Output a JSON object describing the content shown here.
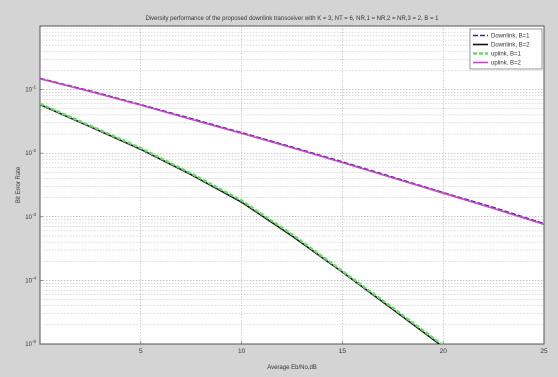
{
  "chart_data": {
    "type": "line",
    "title": "Diversity performance of the proposed downlink transceiver with K = 3, NT = 6, NR,1 = NR,2 = NR,3 = 2, B = 1",
    "xlabel": "Average Eb/No,dB",
    "ylabel": "Bit Error Rate",
    "xlim": [
      0,
      25
    ],
    "ylim_log10": [
      -5,
      0
    ],
    "y_log_scale": true,
    "grid": true,
    "legend_position": "top-right",
    "x_ticks": [
      5,
      10,
      15,
      20,
      25
    ],
    "y_ticks": [
      {
        "exp": -1,
        "label": "10",
        "sup": "-1"
      },
      {
        "exp": -2,
        "label": "10",
        "sup": "-2"
      },
      {
        "exp": -3,
        "label": "10",
        "sup": "-3"
      },
      {
        "exp": -4,
        "label": "10",
        "sup": "-4"
      },
      {
        "exp": -5,
        "label": "10",
        "sup": "-5"
      }
    ],
    "series": [
      {
        "name": "Downlink, B=1",
        "color": "#2b2b8a",
        "dash": "5,2",
        "width": 1.6,
        "x": [
          0,
          2.5,
          5,
          7.5,
          10,
          12.5,
          15,
          17.5,
          20,
          22.5,
          25
        ],
        "y": [
          0.15,
          0.095,
          0.058,
          0.035,
          0.021,
          0.0125,
          0.0073,
          0.0042,
          0.0024,
          0.0014,
          0.00078
        ]
      },
      {
        "name": "Downlink, B=2",
        "color": "#111111",
        "dash": "",
        "width": 1.6,
        "x": [
          0,
          2.5,
          5,
          7.5,
          10,
          12.5,
          15,
          17.5,
          20,
          21.5
        ],
        "y": [
          0.058,
          0.026,
          0.0115,
          0.0046,
          0.0017,
          0.0005,
          0.000135,
          3.5e-05,
          9e-06,
          4.5e-06
        ]
      },
      {
        "name": "uplink, B=1",
        "color": "#66dd66",
        "dash": "4,2",
        "width": 2.4,
        "x": [
          0,
          2.5,
          5,
          7.5,
          10,
          12.5,
          15,
          17.5,
          20,
          21.8
        ],
        "y": [
          0.06,
          0.027,
          0.012,
          0.0048,
          0.0018,
          0.00053,
          0.00014,
          3.7e-05,
          9.5e-06,
          4.5e-06
        ]
      },
      {
        "name": "uplink, B=2",
        "color": "#cc44cc",
        "dash": "",
        "width": 1.6,
        "x": [
          0,
          2.5,
          5,
          7.5,
          10,
          12.5,
          15,
          17.5,
          20,
          22.5,
          25
        ],
        "y": [
          0.148,
          0.093,
          0.057,
          0.034,
          0.0205,
          0.0122,
          0.0071,
          0.0041,
          0.00235,
          0.00135,
          0.00076
        ]
      }
    ]
  }
}
